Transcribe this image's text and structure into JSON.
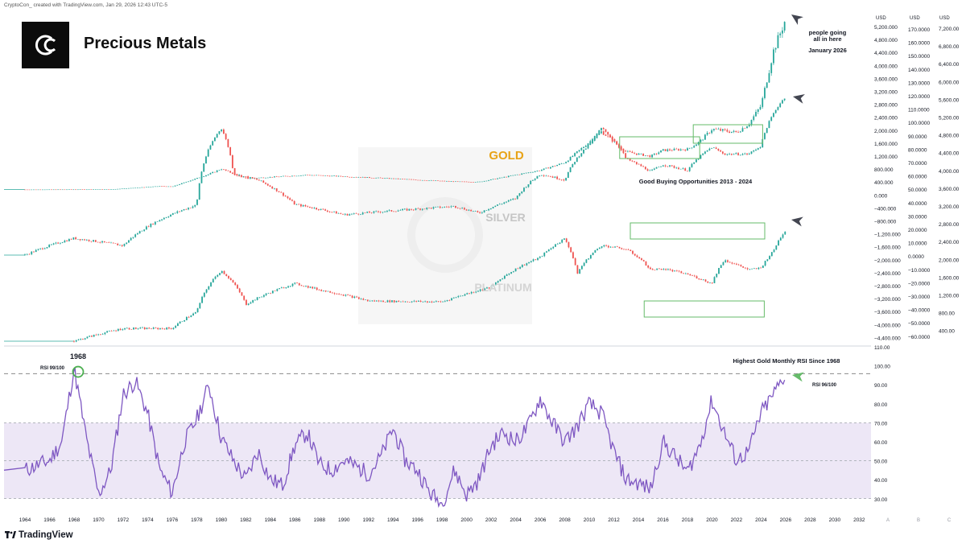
{
  "header": "CryptoCon_ created with TradingView.com, Jan 29, 2026 12:43 UTC-5",
  "title": "Precious Metals",
  "brand": "TradingView",
  "colors": {
    "gold_label": "#e8a317",
    "silver_label": "#c5c5c5",
    "platinum_label": "#d4d4d4",
    "up_candle": "#26a69a",
    "down_candle": "#ef5350",
    "rsi_line": "#7e57c2",
    "rsi_band": "#ede7f6",
    "box": "#66bb6a",
    "highlight_circle": "#4caf50",
    "arrow_dark": "#434651",
    "arrow_green": "#66bb6a"
  },
  "chart_data": [
    {
      "type": "candlestick",
      "name": "GOLD",
      "label": "GOLD",
      "x": [
        1964,
        1968,
        1971,
        1975,
        1976,
        1979,
        1980,
        1982,
        1987,
        1993,
        1999,
        2001,
        2006,
        2008,
        2011,
        2013,
        2015,
        2016,
        2018,
        2019,
        2020,
        2022,
        2023,
        2024,
        2025,
        2026
      ],
      "y": [
        35,
        39,
        41,
        140,
        125,
        512,
        675,
        375,
        486,
        390,
        280,
        270,
        632,
        869,
        1825,
        1200,
        1060,
        1250,
        1280,
        1510,
        1900,
        1800,
        2060,
        2625,
        4300,
        5300
      ],
      "annotations": [
        {
          "text": "people going all in here",
          "x": 2026
        },
        {
          "text": "January 2026",
          "x": 2026
        },
        {
          "text": "Good Buying Opportunities 2013 - 2024",
          "x_range": [
            2013,
            2024
          ]
        }
      ],
      "boxes": [
        {
          "x": [
            2013,
            2019
          ]
        },
        {
          "x": [
            2019,
            2024
          ]
        }
      ]
    },
    {
      "type": "candlestick",
      "name": "SILVER",
      "label": "SILVER",
      "x": [
        1964,
        1968,
        1972,
        1978,
        1980,
        1981,
        1983,
        1986,
        1990,
        1999,
        2001,
        2004,
        2006,
        2008,
        2010,
        2011,
        2013,
        2015,
        2016,
        2018,
        2020,
        2021,
        2023,
        2024,
        2025,
        2026
      ],
      "y": [
        1.3,
        2.1,
        1.7,
        5.4,
        48,
        13,
        11,
        5.5,
        4.1,
        5.2,
        4.3,
        6.5,
        13,
        11,
        30,
        48,
        20,
        14,
        17,
        14.5,
        28,
        23,
        23,
        29,
        72,
        118
      ]
    },
    {
      "type": "candlestick",
      "name": "PLATINUM",
      "label": "PLATINUM",
      "x": [
        1968,
        1972,
        1976,
        1978,
        1980,
        1982,
        1986,
        1988,
        1992,
        1998,
        2002,
        2006,
        2008,
        2009,
        2011,
        2013,
        2014,
        2015,
        2016,
        2018,
        2020,
        2021,
        2023,
        2024,
        2025,
        2026
      ],
      "y": [
        110,
        160,
        160,
        260,
        880,
        325,
        600,
        500,
        360,
        350,
        540,
        1300,
        2250,
        800,
        1850,
        1650,
        1300,
        900,
        930,
        790,
        600,
        1200,
        900,
        950,
        1550,
        2900
      ],
      "boxes": [
        {
          "x": [
            2015,
            2024
          ]
        }
      ]
    },
    {
      "type": "line",
      "name": "RSI",
      "x": [
        1964,
        1966,
        1967,
        1968,
        1969,
        1970,
        1971,
        1972,
        1973,
        1974,
        1975,
        1976,
        1977,
        1978,
        1979,
        1980,
        1981,
        1982,
        1983,
        1984,
        1985,
        1986,
        1987,
        1988,
        1989,
        1990,
        1991,
        1992,
        1993,
        1994,
        1995,
        1996,
        1997,
        1998,
        1999,
        2000,
        2001,
        2002,
        2003,
        2004,
        2005,
        2006,
        2007,
        2008,
        2009,
        2010,
        2011,
        2012,
        2013,
        2014,
        2015,
        2016,
        2017,
        2018,
        2019,
        2020,
        2021,
        2022,
        2023,
        2024,
        2025,
        2026
      ],
      "y": [
        45,
        50,
        60,
        99,
        62,
        32,
        45,
        85,
        92,
        75,
        45,
        33,
        60,
        72,
        90,
        62,
        50,
        40,
        55,
        40,
        37,
        58,
        65,
        48,
        45,
        50,
        47,
        43,
        52,
        67,
        50,
        45,
        33,
        27,
        45,
        32,
        40,
        58,
        65,
        60,
        68,
        83,
        70,
        60,
        68,
        80,
        75,
        55,
        40,
        38,
        35,
        60,
        52,
        44,
        58,
        82,
        65,
        50,
        55,
        75,
        85,
        96
      ],
      "ylim": [
        25,
        100
      ],
      "reference_lines": [
        96,
        70,
        50,
        30
      ],
      "annotations": [
        {
          "text": "1968",
          "x": 1968
        },
        {
          "text": "RSI 99/100",
          "x": 1968,
          "y": 99
        },
        {
          "text": "Highest Gold Monthly RSI Since 1968",
          "x": 2020
        },
        {
          "text": "RSI 96/100",
          "x": 2026,
          "y": 96
        }
      ]
    }
  ],
  "x_axis": {
    "ticks": [
      "1964",
      "1966",
      "1968",
      "1970",
      "1972",
      "1974",
      "1976",
      "1978",
      "1980",
      "1982",
      "1984",
      "1986",
      "1988",
      "1990",
      "1992",
      "1994",
      "1996",
      "1998",
      "2000",
      "2002",
      "2004",
      "2006",
      "2008",
      "2010",
      "2012",
      "2014",
      "2016",
      "2018",
      "2020",
      "2022",
      "2024",
      "2026",
      "2028",
      "2030",
      "2032"
    ],
    "scale_labels": [
      "A",
      "B",
      "C"
    ]
  },
  "y_axes": [
    {
      "unit": "USD",
      "ticks": [
        "5,200.000",
        "4,800.000",
        "4,400.000",
        "4,000.000",
        "3,600.000",
        "3,200.000",
        "2,800.000",
        "2,400.000",
        "2,000.000",
        "1,600.000",
        "1,200.000",
        "800.000",
        "400.000",
        "0.000",
        "−400.000",
        "−800.000",
        "−1,200.000",
        "−1,600.000",
        "−2,000.000",
        "−2,400.000",
        "−2,800.000",
        "−3,200.000",
        "−3,600.000",
        "−4,000.000",
        "−4,400.000"
      ]
    },
    {
      "unit": "USD",
      "ticks": [
        "170.0000",
        "160.0000",
        "150.0000",
        "140.0000",
        "130.0000",
        "120.0000",
        "110.0000",
        "100.0000",
        "90.0000",
        "80.0000",
        "70.0000",
        "60.0000",
        "50.0000",
        "40.0000",
        "30.0000",
        "20.0000",
        "10.0000",
        "0.0000",
        "−10.0000",
        "−20.0000",
        "−30.0000",
        "−40.0000",
        "−50.0000",
        "−60.0000"
      ]
    },
    {
      "unit": "USD",
      "ticks": [
        "7,200.00",
        "6,800.00",
        "6,400.00",
        "6,000.00",
        "5,600.00",
        "5,200.00",
        "4,800.00",
        "4,400.00",
        "4,000.00",
        "3,600.00",
        "3,200.00",
        "2,800.00",
        "2,400.00",
        "2,000.00",
        "1,600.00",
        "1,200.00",
        "800.00",
        "400.00"
      ]
    },
    {
      "name": "RSI",
      "ticks": [
        "110.00",
        "100.00",
        "90.00",
        "80.00",
        "70.00",
        "60.00",
        "50.00",
        "40.00",
        "30.00"
      ]
    }
  ]
}
